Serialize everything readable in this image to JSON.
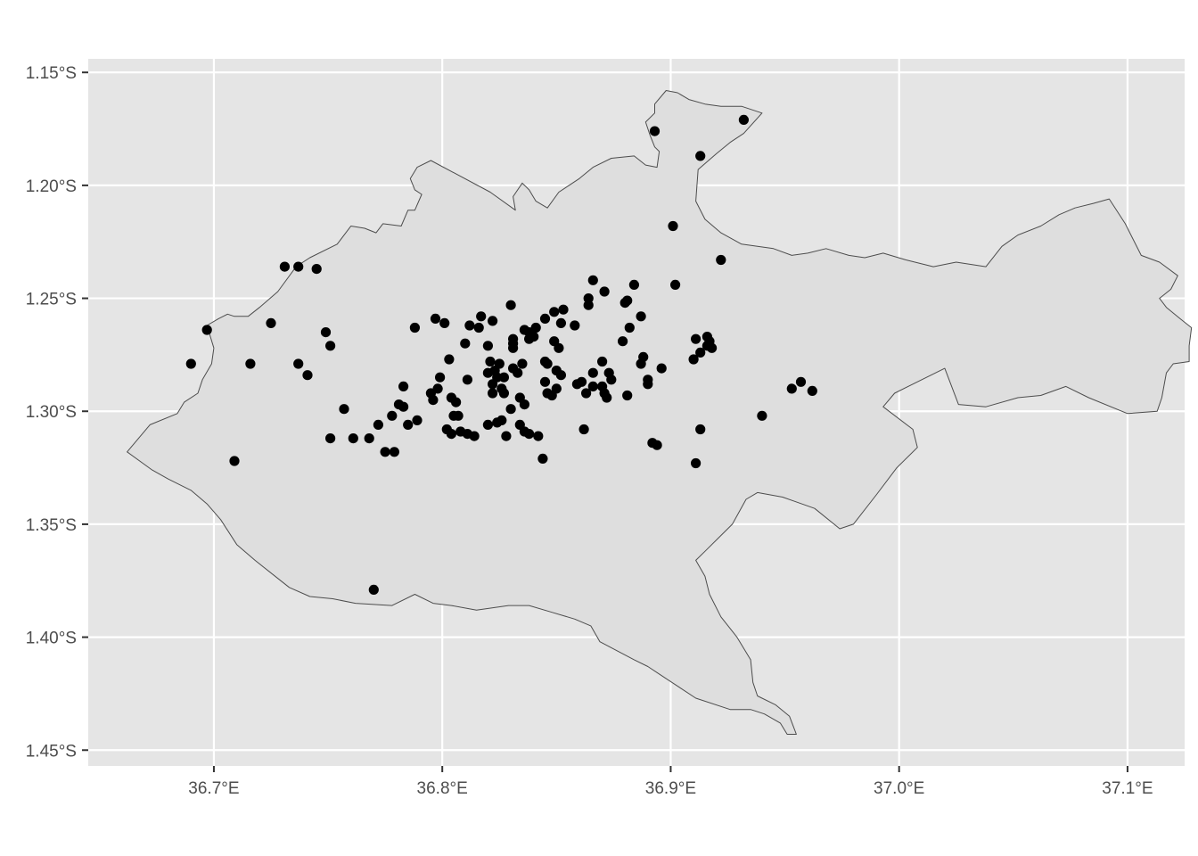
{
  "chart_data": {
    "type": "scatter",
    "title": "",
    "xlabel": "",
    "ylabel": "",
    "xlim": [
      36.645,
      37.125
    ],
    "ylim": [
      -1.457,
      -1.144
    ],
    "grid": true,
    "legend": "none",
    "x_ticks": [
      {
        "value": 36.7,
        "label": "36.7°E"
      },
      {
        "value": 36.8,
        "label": "36.8°E"
      },
      {
        "value": 36.9,
        "label": "36.9°E"
      },
      {
        "value": 37.0,
        "label": "37.0°E"
      },
      {
        "value": 37.1,
        "label": "37.1°E"
      }
    ],
    "y_ticks": [
      {
        "value": -1.15,
        "label": "1.15°S"
      },
      {
        "value": -1.2,
        "label": "1.20°S"
      },
      {
        "value": -1.25,
        "label": "1.25°S"
      },
      {
        "value": -1.3,
        "label": "1.30°S"
      },
      {
        "value": -1.35,
        "label": "1.35°S"
      },
      {
        "value": -1.4,
        "label": "1.40°S"
      },
      {
        "value": -1.45,
        "label": "1.45°S"
      }
    ],
    "colors": {
      "panel": "#e5e5e5",
      "grid": "#ffffff",
      "region_fill": "#dedede",
      "region_stroke": "#4d4d4d",
      "point": "#000000",
      "tick_text": "#4d4d4d"
    },
    "region_outline": [
      [
        36.662,
        -1.318
      ],
      [
        36.672,
        -1.306
      ],
      [
        36.684,
        -1.301
      ],
      [
        36.687,
        -1.296
      ],
      [
        36.693,
        -1.292
      ],
      [
        36.695,
        -1.286
      ],
      [
        36.699,
        -1.279
      ],
      [
        36.7,
        -1.272
      ],
      [
        36.697,
        -1.262
      ],
      [
        36.702,
        -1.259
      ],
      [
        36.706,
        -1.257
      ],
      [
        36.709,
        -1.258
      ],
      [
        36.715,
        -1.258
      ],
      [
        36.72,
        -1.254
      ],
      [
        36.728,
        -1.247
      ],
      [
        36.736,
        -1.236
      ],
      [
        36.742,
        -1.232
      ],
      [
        36.754,
        -1.226
      ],
      [
        36.76,
        -1.218
      ],
      [
        36.766,
        -1.219
      ],
      [
        36.771,
        -1.221
      ],
      [
        36.774,
        -1.217
      ],
      [
        36.782,
        -1.218
      ],
      [
        36.785,
        -1.211
      ],
      [
        36.788,
        -1.211
      ],
      [
        36.791,
        -1.204
      ],
      [
        36.788,
        -1.202
      ],
      [
        36.786,
        -1.197
      ],
      [
        36.789,
        -1.192
      ],
      [
        36.795,
        -1.189
      ],
      [
        36.821,
        -1.203
      ],
      [
        36.832,
        -1.211
      ],
      [
        36.831,
        -1.205
      ],
      [
        36.835,
        -1.199
      ],
      [
        36.838,
        -1.202
      ],
      [
        36.841,
        -1.207
      ],
      [
        36.846,
        -1.21
      ],
      [
        36.851,
        -1.203
      ],
      [
        36.86,
        -1.197
      ],
      [
        36.866,
        -1.192
      ],
      [
        36.874,
        -1.188
      ],
      [
        36.884,
        -1.187
      ],
      [
        36.889,
        -1.191
      ],
      [
        36.894,
        -1.192
      ],
      [
        36.895,
        -1.185
      ],
      [
        36.893,
        -1.183
      ],
      [
        36.891,
        -1.178
      ],
      [
        36.889,
        -1.172
      ],
      [
        36.893,
        -1.168
      ],
      [
        36.893,
        -1.164
      ],
      [
        36.898,
        -1.158
      ],
      [
        36.903,
        -1.159
      ],
      [
        36.908,
        -1.162
      ],
      [
        36.915,
        -1.164
      ],
      [
        36.922,
        -1.165
      ],
      [
        36.931,
        -1.165
      ],
      [
        36.94,
        -1.168
      ],
      [
        36.932,
        -1.177
      ],
      [
        36.926,
        -1.181
      ],
      [
        36.92,
        -1.186
      ],
      [
        36.912,
        -1.193
      ],
      [
        36.911,
        -1.207
      ],
      [
        36.915,
        -1.215
      ],
      [
        36.922,
        -1.221
      ],
      [
        36.931,
        -1.226
      ],
      [
        36.945,
        -1.228
      ],
      [
        36.953,
        -1.231
      ],
      [
        36.96,
        -1.23
      ],
      [
        36.968,
        -1.228
      ],
      [
        36.978,
        -1.231
      ],
      [
        36.985,
        -1.232
      ],
      [
        36.993,
        -1.23
      ],
      [
        37.003,
        -1.233
      ],
      [
        37.015,
        -1.236
      ],
      [
        37.025,
        -1.234
      ],
      [
        37.038,
        -1.236
      ],
      [
        37.045,
        -1.227
      ],
      [
        37.052,
        -1.222
      ],
      [
        37.062,
        -1.218
      ],
      [
        37.07,
        -1.213
      ],
      [
        37.077,
        -1.21
      ],
      [
        37.085,
        -1.208
      ],
      [
        37.092,
        -1.206
      ],
      [
        37.099,
        -1.217
      ],
      [
        37.106,
        -1.231
      ],
      [
        37.114,
        -1.234
      ],
      [
        37.122,
        -1.24
      ],
      [
        37.119,
        -1.246
      ],
      [
        37.114,
        -1.25
      ],
      [
        37.117,
        -1.254
      ],
      [
        37.123,
        -1.259
      ],
      [
        37.128,
        -1.263
      ],
      [
        37.127,
        -1.271
      ],
      [
        37.127,
        -1.278
      ],
      [
        37.12,
        -1.279
      ],
      [
        37.117,
        -1.283
      ],
      [
        37.115,
        -1.294
      ],
      [
        37.113,
        -1.3
      ],
      [
        37.1,
        -1.301
      ],
      [
        37.083,
        -1.294
      ],
      [
        37.073,
        -1.289
      ],
      [
        37.062,
        -1.293
      ],
      [
        37.052,
        -1.294
      ],
      [
        37.038,
        -1.298
      ],
      [
        37.026,
        -1.297
      ],
      [
        37.02,
        -1.281
      ],
      [
        36.998,
        -1.292
      ],
      [
        36.993,
        -1.298
      ],
      [
        37.006,
        -1.308
      ],
      [
        37.008,
        -1.316
      ],
      [
        36.999,
        -1.325
      ],
      [
        36.99,
        -1.337
      ],
      [
        36.98,
        -1.35
      ],
      [
        36.974,
        -1.352
      ],
      [
        36.963,
        -1.343
      ],
      [
        36.949,
        -1.338
      ],
      [
        36.938,
        -1.336
      ],
      [
        36.933,
        -1.339
      ],
      [
        36.927,
        -1.35
      ],
      [
        36.921,
        -1.356
      ],
      [
        36.915,
        -1.362
      ],
      [
        36.911,
        -1.366
      ],
      [
        36.915,
        -1.373
      ],
      [
        36.917,
        -1.381
      ],
      [
        36.922,
        -1.391
      ],
      [
        36.929,
        -1.4
      ],
      [
        36.935,
        -1.41
      ],
      [
        36.936,
        -1.42
      ],
      [
        36.938,
        -1.426
      ],
      [
        36.946,
        -1.43
      ],
      [
        36.952,
        -1.435
      ],
      [
        36.955,
        -1.443
      ],
      [
        36.951,
        -1.443
      ],
      [
        36.948,
        -1.438
      ],
      [
        36.941,
        -1.434
      ],
      [
        36.935,
        -1.432
      ],
      [
        36.926,
        -1.432
      ],
      [
        36.911,
        -1.427
      ],
      [
        36.896,
        -1.417
      ],
      [
        36.89,
        -1.413
      ],
      [
        36.884,
        -1.41
      ],
      [
        36.869,
        -1.402
      ],
      [
        36.865,
        -1.395
      ],
      [
        36.858,
        -1.392
      ],
      [
        36.848,
        -1.389
      ],
      [
        36.838,
        -1.386
      ],
      [
        36.829,
        -1.386
      ],
      [
        36.815,
        -1.388
      ],
      [
        36.804,
        -1.386
      ],
      [
        36.796,
        -1.385
      ],
      [
        36.788,
        -1.381
      ],
      [
        36.778,
        -1.386
      ],
      [
        36.762,
        -1.385
      ],
      [
        36.752,
        -1.383
      ],
      [
        36.742,
        -1.382
      ],
      [
        36.733,
        -1.378
      ],
      [
        36.728,
        -1.374
      ],
      [
        36.718,
        -1.366
      ],
      [
        36.71,
        -1.359
      ],
      [
        36.703,
        -1.348
      ],
      [
        36.697,
        -1.341
      ],
      [
        36.69,
        -1.335
      ],
      [
        36.68,
        -1.33
      ],
      [
        36.673,
        -1.326
      ],
      [
        36.662,
        -1.318
      ]
    ],
    "points": [
      {
        "x": 36.893,
        "y": -1.176
      },
      {
        "x": 36.932,
        "y": -1.171
      },
      {
        "x": 36.913,
        "y": -1.187
      },
      {
        "x": 36.901,
        "y": -1.218
      },
      {
        "x": 36.922,
        "y": -1.233
      },
      {
        "x": 36.731,
        "y": -1.236
      },
      {
        "x": 36.737,
        "y": -1.236
      },
      {
        "x": 36.745,
        "y": -1.237
      },
      {
        "x": 36.725,
        "y": -1.261
      },
      {
        "x": 36.697,
        "y": -1.264
      },
      {
        "x": 36.69,
        "y": -1.279
      },
      {
        "x": 36.716,
        "y": -1.279
      },
      {
        "x": 36.737,
        "y": -1.279
      },
      {
        "x": 36.741,
        "y": -1.284
      },
      {
        "x": 36.749,
        "y": -1.265
      },
      {
        "x": 36.751,
        "y": -1.271
      },
      {
        "x": 36.709,
        "y": -1.322
      },
      {
        "x": 36.77,
        "y": -1.379
      },
      {
        "x": 36.757,
        "y": -1.299
      },
      {
        "x": 36.751,
        "y": -1.312
      },
      {
        "x": 36.761,
        "y": -1.312
      },
      {
        "x": 36.768,
        "y": -1.312
      },
      {
        "x": 36.772,
        "y": -1.306
      },
      {
        "x": 36.778,
        "y": -1.302
      },
      {
        "x": 36.775,
        "y": -1.318
      },
      {
        "x": 36.779,
        "y": -1.318
      },
      {
        "x": 36.781,
        "y": -1.297
      },
      {
        "x": 36.783,
        "y": -1.298
      },
      {
        "x": 36.785,
        "y": -1.306
      },
      {
        "x": 36.783,
        "y": -1.289
      },
      {
        "x": 36.789,
        "y": -1.304
      },
      {
        "x": 36.788,
        "y": -1.263
      },
      {
        "x": 36.797,
        "y": -1.259
      },
      {
        "x": 36.801,
        "y": -1.261
      },
      {
        "x": 36.803,
        "y": -1.277
      },
      {
        "x": 36.799,
        "y": -1.285
      },
      {
        "x": 36.795,
        "y": -1.292
      },
      {
        "x": 36.798,
        "y": -1.29
      },
      {
        "x": 36.796,
        "y": -1.295
      },
      {
        "x": 36.804,
        "y": -1.294
      },
      {
        "x": 36.806,
        "y": -1.296
      },
      {
        "x": 36.805,
        "y": -1.302
      },
      {
        "x": 36.807,
        "y": -1.302
      },
      {
        "x": 36.802,
        "y": -1.308
      },
      {
        "x": 36.804,
        "y": -1.31
      },
      {
        "x": 36.808,
        "y": -1.309
      },
      {
        "x": 36.811,
        "y": -1.31
      },
      {
        "x": 36.814,
        "y": -1.311
      },
      {
        "x": 36.81,
        "y": -1.27
      },
      {
        "x": 36.812,
        "y": -1.262
      },
      {
        "x": 36.816,
        "y": -1.263
      },
      {
        "x": 36.817,
        "y": -1.258
      },
      {
        "x": 36.822,
        "y": -1.26
      },
      {
        "x": 36.811,
        "y": -1.286
      },
      {
        "x": 36.82,
        "y": -1.271
      },
      {
        "x": 36.821,
        "y": -1.278
      },
      {
        "x": 36.823,
        "y": -1.282
      },
      {
        "x": 36.82,
        "y": -1.283
      },
      {
        "x": 36.822,
        "y": -1.288
      },
      {
        "x": 36.824,
        "y": -1.285
      },
      {
        "x": 36.825,
        "y": -1.279
      },
      {
        "x": 36.827,
        "y": -1.285
      },
      {
        "x": 36.822,
        "y": -1.292
      },
      {
        "x": 36.826,
        "y": -1.29
      },
      {
        "x": 36.827,
        "y": -1.292
      },
      {
        "x": 36.82,
        "y": -1.306
      },
      {
        "x": 36.824,
        "y": -1.305
      },
      {
        "x": 36.826,
        "y": -1.304
      },
      {
        "x": 36.828,
        "y": -1.311
      },
      {
        "x": 36.83,
        "y": -1.299
      },
      {
        "x": 36.83,
        "y": -1.253
      },
      {
        "x": 36.831,
        "y": -1.268
      },
      {
        "x": 36.831,
        "y": -1.27
      },
      {
        "x": 36.831,
        "y": -1.272
      },
      {
        "x": 36.831,
        "y": -1.281
      },
      {
        "x": 36.833,
        "y": -1.283
      },
      {
        "x": 36.835,
        "y": -1.279
      },
      {
        "x": 36.834,
        "y": -1.294
      },
      {
        "x": 36.836,
        "y": -1.297
      },
      {
        "x": 36.834,
        "y": -1.306
      },
      {
        "x": 36.836,
        "y": -1.309
      },
      {
        "x": 36.838,
        "y": -1.31
      },
      {
        "x": 36.836,
        "y": -1.264
      },
      {
        "x": 36.838,
        "y": -1.265
      },
      {
        "x": 36.838,
        "y": -1.268
      },
      {
        "x": 36.84,
        "y": -1.267
      },
      {
        "x": 36.841,
        "y": -1.263
      },
      {
        "x": 36.845,
        "y": -1.259
      },
      {
        "x": 36.849,
        "y": -1.256
      },
      {
        "x": 36.853,
        "y": -1.255
      },
      {
        "x": 36.849,
        "y": -1.269
      },
      {
        "x": 36.852,
        "y": -1.261
      },
      {
        "x": 36.851,
        "y": -1.272
      },
      {
        "x": 36.845,
        "y": -1.278
      },
      {
        "x": 36.846,
        "y": -1.279
      },
      {
        "x": 36.85,
        "y": -1.282
      },
      {
        "x": 36.852,
        "y": -1.284
      },
      {
        "x": 36.845,
        "y": -1.287
      },
      {
        "x": 36.846,
        "y": -1.292
      },
      {
        "x": 36.848,
        "y": -1.293
      },
      {
        "x": 36.85,
        "y": -1.29
      },
      {
        "x": 36.842,
        "y": -1.311
      },
      {
        "x": 36.844,
        "y": -1.321
      },
      {
        "x": 36.858,
        "y": -1.262
      },
      {
        "x": 36.859,
        "y": -1.288
      },
      {
        "x": 36.861,
        "y": -1.287
      },
      {
        "x": 36.863,
        "y": -1.292
      },
      {
        "x": 36.862,
        "y": -1.308
      },
      {
        "x": 36.866,
        "y": -1.283
      },
      {
        "x": 36.866,
        "y": -1.289
      },
      {
        "x": 36.864,
        "y": -1.25
      },
      {
        "x": 36.864,
        "y": -1.253
      },
      {
        "x": 36.866,
        "y": -1.242
      },
      {
        "x": 36.871,
        "y": -1.247
      },
      {
        "x": 36.87,
        "y": -1.278
      },
      {
        "x": 36.87,
        "y": -1.289
      },
      {
        "x": 36.873,
        "y": -1.283
      },
      {
        "x": 36.871,
        "y": -1.292
      },
      {
        "x": 36.872,
        "y": -1.294
      },
      {
        "x": 36.874,
        "y": -1.286
      },
      {
        "x": 36.879,
        "y": -1.269
      },
      {
        "x": 36.88,
        "y": -1.252
      },
      {
        "x": 36.881,
        "y": -1.251
      },
      {
        "x": 36.882,
        "y": -1.263
      },
      {
        "x": 36.881,
        "y": -1.293
      },
      {
        "x": 36.884,
        "y": -1.244
      },
      {
        "x": 36.887,
        "y": -1.258
      },
      {
        "x": 36.887,
        "y": -1.279
      },
      {
        "x": 36.888,
        "y": -1.276
      },
      {
        "x": 36.89,
        "y": -1.286
      },
      {
        "x": 36.89,
        "y": -1.288
      },
      {
        "x": 36.892,
        "y": -1.314
      },
      {
        "x": 36.894,
        "y": -1.315
      },
      {
        "x": 36.896,
        "y": -1.281
      },
      {
        "x": 36.902,
        "y": -1.244
      },
      {
        "x": 36.91,
        "y": -1.277
      },
      {
        "x": 36.911,
        "y": -1.268
      },
      {
        "x": 36.913,
        "y": -1.274
      },
      {
        "x": 36.916,
        "y": -1.267
      },
      {
        "x": 36.917,
        "y": -1.269
      },
      {
        "x": 36.918,
        "y": -1.272
      },
      {
        "x": 36.916,
        "y": -1.271
      },
      {
        "x": 36.913,
        "y": -1.308
      },
      {
        "x": 36.911,
        "y": -1.323
      },
      {
        "x": 36.94,
        "y": -1.302
      },
      {
        "x": 36.953,
        "y": -1.29
      },
      {
        "x": 36.957,
        "y": -1.287
      },
      {
        "x": 36.962,
        "y": -1.291
      }
    ]
  }
}
